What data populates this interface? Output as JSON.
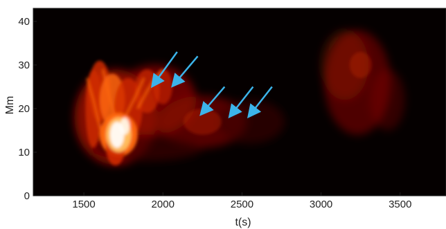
{
  "chart_data": {
    "type": "heatmap",
    "title": "",
    "xlabel": "t(s)",
    "ylabel": "Mm",
    "xlim": [
      1180,
      3790
    ],
    "ylim": [
      0,
      43
    ],
    "xticks": [
      1500,
      2000,
      2500,
      3000,
      3500
    ],
    "yticks": [
      0,
      10,
      20,
      30,
      40
    ],
    "colormap": [
      "#000000",
      "#3a0000",
      "#8a0800",
      "#d02a00",
      "#ff6a10",
      "#ffc060",
      "#ffffff"
    ],
    "background_color": "#050000",
    "arrow_color": "#3cb4ea",
    "emission_regions": [
      {
        "name": "bright-core",
        "t": 1720,
        "y": 14,
        "peak": 1.0
      },
      {
        "name": "jet-left-strand",
        "t": 1560,
        "y": 24,
        "peak": 0.75
      },
      {
        "name": "jet-upper-strands",
        "t": 1900,
        "y": 26,
        "peak": 0.7
      },
      {
        "name": "trailing-loop",
        "t": 2300,
        "y": 18,
        "peak": 0.45
      },
      {
        "name": "late-blob",
        "t": 3230,
        "y": 26,
        "peak": 0.35
      }
    ],
    "arrows": [
      {
        "tip_t": 1950,
        "tip_y": 26,
        "tail_t": 2090,
        "tail_y": 33
      },
      {
        "tip_t": 2080,
        "tip_y": 26,
        "tail_t": 2220,
        "tail_y": 32
      },
      {
        "tip_t": 2260,
        "tip_y": 19.5,
        "tail_t": 2390,
        "tail_y": 25
      },
      {
        "tip_t": 2440,
        "tip_y": 19,
        "tail_t": 2570,
        "tail_y": 25
      },
      {
        "tip_t": 2560,
        "tip_y": 19,
        "tail_t": 2690,
        "tail_y": 25
      }
    ]
  }
}
